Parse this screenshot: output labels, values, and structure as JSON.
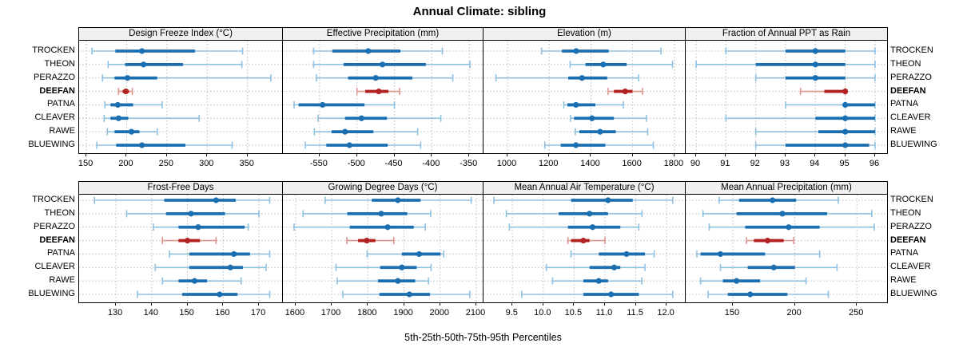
{
  "title": "Annual Climate: sibling",
  "caption": "5th-25th-50th-75th-95th Percentiles",
  "sites": [
    "TROCKEN",
    "THEON",
    "PERAZZO",
    "DEEFAN",
    "PATNA",
    "CLEAVER",
    "RAWE",
    "BLUEWING"
  ],
  "highlight_site": "DEEFAN",
  "colors": {
    "blue_dark": "#1b6fb0",
    "blue_light": "#8fc1e0",
    "red_dark": "#b22222",
    "red_light": "#dd948d",
    "grid": "#bdbdbd",
    "strip_bg": "#f0f0f0",
    "frame": "#000000"
  },
  "chart_data": {
    "type": "trellis-dotplot-percentiles",
    "percentile_labels": [
      "5th",
      "25th",
      "50th",
      "75th",
      "95th"
    ],
    "grid": "2 rows x 4 columns, dotted gridlines, site labels on both left and right",
    "panels": [
      {
        "title": "Design Freeze Index (°C)",
        "ticks": [
          150,
          200,
          250,
          300,
          350
        ],
        "tick_decimals": 0,
        "range": [
          141,
          394
        ],
        "values": [
          [
            157,
            186,
            219,
            285,
            344
          ],
          [
            177,
            198,
            221,
            270,
            343
          ],
          [
            170,
            185,
            201,
            238,
            379
          ],
          [
            190,
            195,
            199,
            203,
            207
          ],
          [
            173,
            180,
            189,
            208,
            244
          ],
          [
            172,
            180,
            190,
            202,
            290
          ],
          [
            176,
            185,
            206,
            216,
            238
          ],
          [
            163,
            187,
            219,
            273,
            331
          ]
        ]
      },
      {
        "title": "Effective Precipitation (mm)",
        "ticks": [
          -550,
          -500,
          -450,
          -400,
          -350
        ],
        "tick_decimals": 0,
        "range": [
          -599,
          -331
        ],
        "values": [
          [
            -558,
            -533,
            -485,
            -442,
            -386
          ],
          [
            -558,
            -518,
            -466,
            -408,
            -349
          ],
          [
            -554,
            -512,
            -475,
            -426,
            -372
          ],
          [
            -500,
            -489,
            -471,
            -458,
            -443
          ],
          [
            -584,
            -578,
            -546,
            -490,
            -450
          ],
          [
            -552,
            -516,
            -494,
            -460,
            -388
          ],
          [
            -557,
            -534,
            -516,
            -478,
            -419
          ],
          [
            -569,
            -541,
            -510,
            -459,
            -415
          ]
        ]
      },
      {
        "title": "Elevation (m)",
        "ticks": [
          1000,
          1200,
          1400,
          1600,
          1800
        ],
        "tick_decimals": 0,
        "range": [
          885,
          1854
        ],
        "values": [
          [
            1163,
            1261,
            1329,
            1485,
            1736
          ],
          [
            1300,
            1374,
            1459,
            1571,
            1791
          ],
          [
            945,
            1291,
            1357,
            1478,
            1629
          ],
          [
            1482,
            1510,
            1564,
            1599,
            1647
          ],
          [
            1270,
            1287,
            1328,
            1421,
            1555
          ],
          [
            1302,
            1319,
            1405,
            1510,
            1666
          ],
          [
            1325,
            1344,
            1444,
            1519,
            1672
          ],
          [
            1179,
            1255,
            1328,
            1469,
            1699
          ]
        ]
      },
      {
        "title": "Fraction of Annual PPT as Rain",
        "ticks": [
          90,
          91,
          92,
          93,
          94,
          95,
          96
        ],
        "tick_decimals": 0,
        "range": [
          89.65,
          96.43
        ],
        "values": [
          [
            91,
            93,
            94,
            95,
            96
          ],
          [
            90,
            92,
            94,
            95,
            96
          ],
          [
            92,
            93,
            94,
            95,
            96
          ],
          [
            93.5,
            94.3,
            95,
            95,
            95
          ],
          [
            93,
            95,
            95,
            96,
            96
          ],
          [
            91,
            94,
            95,
            96,
            96
          ],
          [
            92,
            94.1,
            95,
            96,
            96
          ],
          [
            92,
            93,
            95,
            95.8,
            96
          ]
        ]
      },
      {
        "title": "Frost-Free Days",
        "ticks": [
          130,
          140,
          150,
          160,
          170
        ],
        "tick_decimals": 0,
        "range": [
          119.7,
          176.7
        ],
        "values": [
          [
            124,
            143.5,
            158,
            163.5,
            173
          ],
          [
            133,
            144,
            151,
            160.5,
            170
          ],
          [
            140.5,
            147.5,
            153,
            166,
            167
          ],
          [
            143,
            147.5,
            150,
            153.5,
            158
          ],
          [
            145,
            150.5,
            163,
            167.5,
            173
          ],
          [
            141,
            150.5,
            162,
            165.5,
            172
          ],
          [
            143,
            147.5,
            152,
            155.5,
            165
          ],
          [
            136,
            148.5,
            159,
            164,
            173
          ]
        ]
      },
      {
        "title": "Growing Degree Days (°C)",
        "ticks": [
          1600,
          1700,
          1800,
          1900,
          2000,
          2100
        ],
        "tick_decimals": 0,
        "range": [
          1565,
          2120
        ],
        "values": [
          [
            1682,
            1811,
            1883,
            1946,
            2086
          ],
          [
            1621,
            1743,
            1837,
            1909,
            1974
          ],
          [
            1596,
            1750,
            1855,
            1927,
            1959
          ],
          [
            1742,
            1773,
            1797,
            1821,
            1872
          ],
          [
            1798,
            1894,
            1942,
            2001,
            2010
          ],
          [
            1712,
            1834,
            1894,
            1935,
            1975
          ],
          [
            1715,
            1828,
            1883,
            1931,
            1968
          ],
          [
            1731,
            1832,
            1915,
            1972,
            2082
          ]
        ]
      },
      {
        "title": "Mean Annual Air Temperature (°C)",
        "ticks": [
          9.5,
          10,
          10.5,
          11,
          11.5,
          12
        ],
        "tick_decimals": 1,
        "range": [
          9.03,
          12.31
        ],
        "values": [
          [
            9.2,
            10.45,
            11.05,
            11.45,
            12.1
          ],
          [
            9.4,
            10.25,
            10.75,
            11.05,
            11.6
          ],
          [
            9.45,
            10.4,
            10.8,
            11.25,
            11.55
          ],
          [
            10.4,
            10.45,
            10.65,
            10.75,
            11.0
          ],
          [
            10.45,
            10.9,
            11.35,
            11.65,
            11.8
          ],
          [
            10.05,
            10.75,
            11.15,
            11.25,
            11.65
          ],
          [
            10.15,
            10.65,
            10.9,
            11.05,
            11.6
          ],
          [
            9.65,
            10.65,
            11.1,
            11.55,
            12.1
          ]
        ]
      },
      {
        "title": "Mean Annual Precipitation (mm)",
        "ticks": [
          150,
          200,
          250
        ],
        "tick_decimals": 0,
        "range": [
          112,
          275
        ],
        "values": [
          [
            139,
            155,
            182,
            201,
            235
          ],
          [
            126,
            153,
            190,
            226,
            262
          ],
          [
            131,
            160,
            195,
            220,
            264
          ],
          [
            161,
            167,
            178,
            191,
            199
          ],
          [
            121,
            124,
            140,
            176,
            220
          ],
          [
            140,
            162,
            183,
            200,
            234
          ],
          [
            124,
            142,
            153,
            172,
            209
          ],
          [
            130,
            146,
            164,
            194,
            227
          ]
        ]
      }
    ]
  }
}
